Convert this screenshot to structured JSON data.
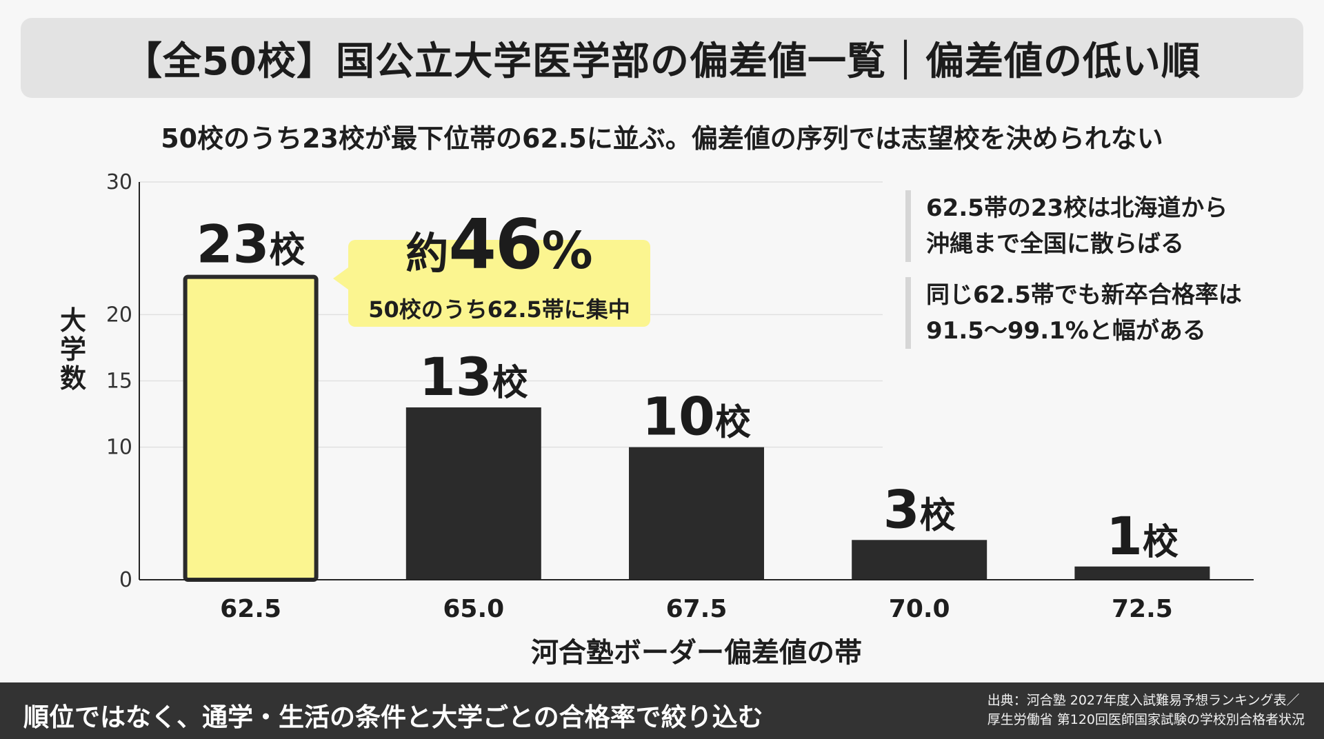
{
  "header": {
    "title": "【全50校】国公立大学医学部の偏差値一覧｜偏差値の低い順",
    "subtitle": "50校のうち23校が最下位帯の62.5に並ぶ。偏差値の序列では志望校を決められない"
  },
  "callout": {
    "prefix": "約",
    "number": "46",
    "suffix": "%",
    "sub": "50校のうち62.5帯に集中",
    "color": "#fbf590"
  },
  "notes": [
    "62.5帯の23校は北海道から\n沖縄まで全国に散らばる",
    "同じ62.5帯でも新卒合格率は\n91.5〜99.1%と幅がある"
  ],
  "footer": {
    "message": "順位ではなく、通学・生活の条件と大学ごとの合格率で絞り込む",
    "source": "出典：河合塾 2027年度入試難易予想ランキング表／\n厚生労働省 第120回医師国家試験の学校別合格者状況"
  },
  "chart_data": {
    "type": "bar",
    "categories": [
      "62.5",
      "65.0",
      "67.5",
      "70.0",
      "72.5"
    ],
    "values": [
      23,
      13,
      10,
      3,
      1
    ],
    "data_labels": [
      "23校",
      "13校",
      "10校",
      "3校",
      "1校"
    ],
    "highlight_index": 0,
    "highlight_color": "#fbf590",
    "bar_color": "#2b2b2b",
    "xlabel": "河合塾ボーダー偏差値の帯",
    "ylabel": "大学数",
    "ylim": [
      0,
      30
    ],
    "yticks": [
      0,
      10,
      15,
      20,
      30
    ],
    "grid": true
  }
}
